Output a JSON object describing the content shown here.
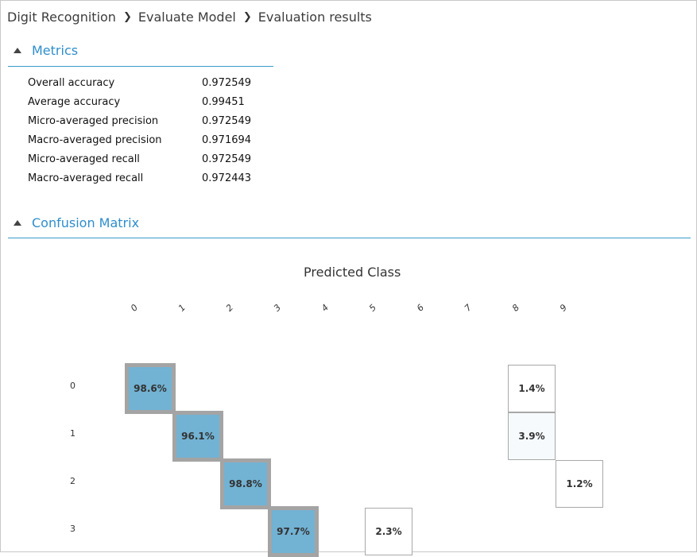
{
  "breadcrumb": {
    "items": [
      "Digit Recognition",
      "Evaluate Model",
      "Evaluation results"
    ]
  },
  "metrics": {
    "title": "Metrics",
    "rows": [
      {
        "label": "Overall accuracy",
        "value": "0.972549"
      },
      {
        "label": "Average accuracy",
        "value": "0.99451"
      },
      {
        "label": "Micro-averaged precision",
        "value": "0.972549"
      },
      {
        "label": "Macro-averaged precision",
        "value": "0.971694"
      },
      {
        "label": "Micro-averaged recall",
        "value": "0.972549"
      },
      {
        "label": "Macro-averaged recall",
        "value": "0.972443"
      }
    ]
  },
  "confusion": {
    "title": "Confusion Matrix",
    "predicted_title": "Predicted Class",
    "columns": [
      "0",
      "1",
      "2",
      "3",
      "4",
      "5",
      "6",
      "7",
      "8",
      "9"
    ],
    "rows": [
      "0",
      "1",
      "2",
      "3"
    ],
    "cells": [
      {
        "row": 0,
        "col": 0,
        "value": "98.6%",
        "diag": true
      },
      {
        "row": 0,
        "col": 8,
        "value": "1.4%",
        "diag": false
      },
      {
        "row": 1,
        "col": 1,
        "value": "96.1%",
        "diag": true
      },
      {
        "row": 1,
        "col": 8,
        "value": "3.9%",
        "diag": false
      },
      {
        "row": 2,
        "col": 2,
        "value": "98.8%",
        "diag": true
      },
      {
        "row": 2,
        "col": 9,
        "value": "1.2%",
        "diag": false
      },
      {
        "row": 3,
        "col": 3,
        "value": "97.7%",
        "diag": true
      },
      {
        "row": 3,
        "col": 5,
        "value": "2.3%",
        "diag": false
      }
    ]
  },
  "colors": {
    "accent": "#2e8ecc",
    "diag_fill": "#72b2d3",
    "diag_border": "#a4a4a4"
  }
}
